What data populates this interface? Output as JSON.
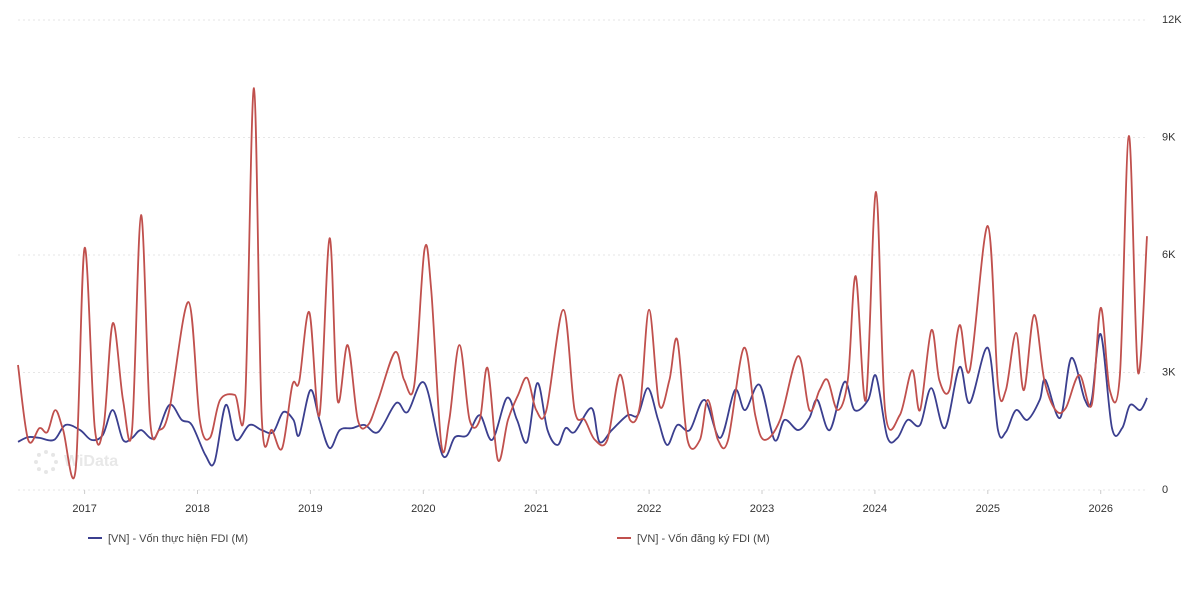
{
  "chart_data": {
    "type": "line",
    "watermark": "WiData",
    "xlim": [
      2016.41,
      2026.41
    ],
    "xticks": [
      2017,
      2018,
      2019,
      2020,
      2021,
      2022,
      2023,
      2024,
      2025,
      2026
    ],
    "ylim": [
      0,
      12000
    ],
    "yticks": [
      0,
      {
        "value": 3000,
        "label": "3K"
      },
      {
        "value": 6000,
        "label": "6K"
      },
      {
        "value": 9000,
        "label": "9K"
      },
      {
        "value": 12000,
        "label": "12K"
      }
    ],
    "grid": true,
    "legend": "bottom",
    "series": [
      {
        "name": "[VN] - Vốn thực hiện FDI (M)",
        "color": "#3b3f8f",
        "x": [
          2016.41,
          2016.5,
          2016.6,
          2016.73,
          2016.83,
          2016.96,
          2017.06,
          2017.16,
          2017.25,
          2017.34,
          2017.42,
          2017.5,
          2017.62,
          2017.75,
          2017.86,
          2017.95,
          2018.07,
          2018.15,
          2018.25,
          2018.34,
          2018.46,
          2018.57,
          2018.67,
          2018.76,
          2018.85,
          2018.9,
          2019.0,
          2019.08,
          2019.17,
          2019.26,
          2019.37,
          2019.48,
          2019.6,
          2019.76,
          2019.86,
          2020.01,
          2020.17,
          2020.28,
          2020.39,
          2020.5,
          2020.61,
          2020.74,
          2020.83,
          2020.92,
          2021.01,
          2021.1,
          2021.19,
          2021.26,
          2021.34,
          2021.49,
          2021.56,
          2021.67,
          2021.81,
          2021.9,
          2021.99,
          2022.08,
          2022.16,
          2022.25,
          2022.36,
          2022.49,
          2022.63,
          2022.76,
          2022.85,
          2022.98,
          2023.11,
          2023.2,
          2023.32,
          2023.42,
          2023.49,
          2023.6,
          2023.73,
          2023.82,
          2023.94,
          2024.01,
          2024.11,
          2024.2,
          2024.29,
          2024.4,
          2024.5,
          2024.62,
          2024.75,
          2024.84,
          2025.0,
          2025.09,
          2025.16,
          2025.25,
          2025.35,
          2025.46,
          2025.51,
          2025.64,
          2025.74,
          2025.86,
          2025.92,
          2026.0,
          2026.1,
          2026.19,
          2026.26,
          2026.35,
          2026.41
        ],
        "values": [
          1230,
          1350,
          1330,
          1280,
          1660,
          1530,
          1280,
          1400,
          2040,
          1280,
          1330,
          1530,
          1330,
          2170,
          1790,
          1660,
          890,
          710,
          2170,
          1280,
          1660,
          1530,
          1480,
          1990,
          1790,
          1400,
          2550,
          1790,
          1070,
          1530,
          1580,
          1660,
          1480,
          2220,
          1990,
          2730,
          890,
          1350,
          1400,
          1910,
          1280,
          2350,
          1790,
          1230,
          2730,
          1530,
          1150,
          1580,
          1480,
          2090,
          1230,
          1530,
          1910,
          1910,
          2600,
          1790,
          1150,
          1660,
          1530,
          2300,
          1330,
          2550,
          2040,
          2680,
          1280,
          1790,
          1530,
          1840,
          2300,
          1530,
          2760,
          2040,
          2300,
          2910,
          1350,
          1330,
          1790,
          1660,
          2600,
          1580,
          3140,
          2220,
          3630,
          1530,
          1480,
          2040,
          1790,
          2300,
          2810,
          1840,
          3370,
          2300,
          2300,
          3980,
          1580,
          1580,
          2170,
          2040,
          2350
        ]
      },
      {
        "name": "[VN] - Vốn đăng ký FDI (M)",
        "color": "#c0504d",
        "x": [
          2016.41,
          2016.5,
          2016.6,
          2016.67,
          2016.74,
          2016.81,
          2016.92,
          2017.0,
          2017.09,
          2017.17,
          2017.25,
          2017.34,
          2017.42,
          2017.5,
          2017.58,
          2017.66,
          2017.75,
          2017.92,
          2018.02,
          2018.11,
          2018.2,
          2018.33,
          2018.42,
          2018.5,
          2018.57,
          2018.66,
          2018.75,
          2018.84,
          2018.9,
          2018.99,
          2019.08,
          2019.17,
          2019.24,
          2019.33,
          2019.42,
          2019.51,
          2019.6,
          2019.75,
          2019.83,
          2019.92,
          2020.01,
          2020.07,
          2020.16,
          2020.23,
          2020.32,
          2020.41,
          2020.5,
          2020.57,
          2020.66,
          2020.75,
          2020.84,
          2020.92,
          2021.0,
          2021.09,
          2021.24,
          2021.34,
          2021.43,
          2021.52,
          2021.63,
          2021.74,
          2021.83,
          2021.92,
          2022.0,
          2022.09,
          2022.18,
          2022.25,
          2022.34,
          2022.45,
          2022.52,
          2022.61,
          2022.7,
          2022.84,
          2022.94,
          2023.02,
          2023.16,
          2023.32,
          2023.42,
          2023.51,
          2023.58,
          2023.67,
          2023.76,
          2023.83,
          2023.92,
          2024.01,
          2024.09,
          2024.22,
          2024.33,
          2024.4,
          2024.5,
          2024.57,
          2024.66,
          2024.75,
          2024.84,
          2025.0,
          2025.09,
          2025.16,
          2025.25,
          2025.32,
          2025.41,
          2025.5,
          2025.6,
          2025.69,
          2025.81,
          2025.92,
          2026.0,
          2026.08,
          2026.17,
          2026.25,
          2026.33,
          2026.41
        ],
        "values": [
          3190,
          1280,
          1580,
          1480,
          2040,
          1530,
          510,
          6180,
          1580,
          1660,
          4260,
          2300,
          1530,
          7020,
          1790,
          1530,
          2040,
          4800,
          1790,
          1330,
          2300,
          2430,
          2170,
          10260,
          1790,
          1530,
          1070,
          2680,
          2760,
          4540,
          1910,
          6430,
          2300,
          3700,
          1790,
          1660,
          2300,
          3520,
          2810,
          2680,
          6130,
          5110,
          1150,
          1790,
          3700,
          1790,
          1790,
          3110,
          770,
          1790,
          2430,
          2860,
          2040,
          2040,
          4600,
          2040,
          1790,
          1280,
          1280,
          2940,
          1790,
          2170,
          4600,
          2170,
          2810,
          3830,
          1280,
          1280,
          2300,
          1280,
          1280,
          3630,
          1910,
          1280,
          1790,
          3420,
          2040,
          2550,
          2810,
          2040,
          2810,
          5460,
          2300,
          7610,
          2040,
          1910,
          3060,
          2040,
          4080,
          2810,
          2550,
          4210,
          3060,
          6740,
          2680,
          2550,
          4010,
          2550,
          4470,
          2810,
          2040,
          2090,
          2940,
          2170,
          4650,
          2550,
          2940,
          9040,
          3010,
          6480
        ]
      }
    ]
  }
}
